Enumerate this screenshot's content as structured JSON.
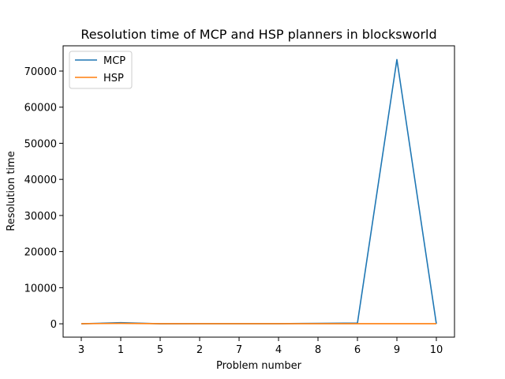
{
  "chart_data": {
    "type": "line",
    "title": "Resolution time of MCP and HSP planners in blocksworld",
    "xlabel": "Problem number",
    "ylabel": "Resolution time",
    "categories": [
      "3",
      "1",
      "5",
      "2",
      "7",
      "4",
      "8",
      "6",
      "9",
      "10"
    ],
    "yticks": [
      0,
      10000,
      20000,
      30000,
      40000,
      50000,
      60000,
      70000
    ],
    "ylim": [
      -3700,
      77000
    ],
    "grid": false,
    "legend_position": "top-left",
    "series": [
      {
        "name": "MCP",
        "color": "#1f77b4",
        "values": [
          0,
          300,
          0,
          50,
          50,
          50,
          100,
          200,
          73200,
          0
        ]
      },
      {
        "name": "HSP",
        "color": "#ff7f0e",
        "values": [
          50,
          100,
          50,
          50,
          50,
          50,
          50,
          50,
          50,
          50
        ]
      }
    ]
  }
}
